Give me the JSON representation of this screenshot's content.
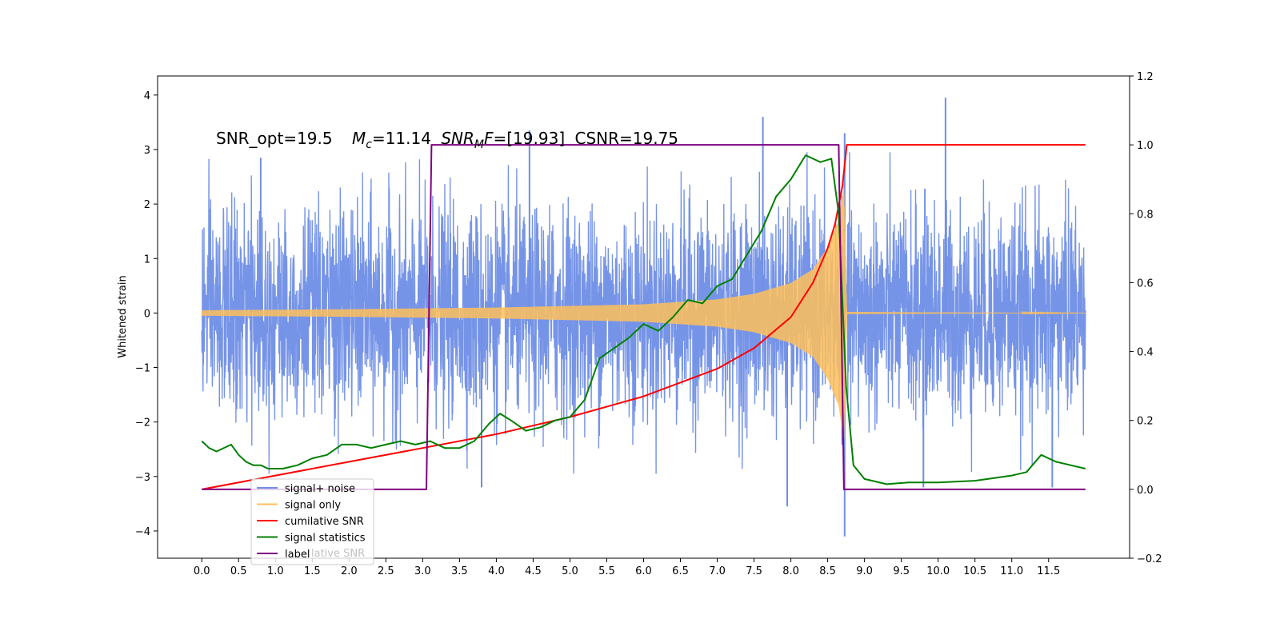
{
  "chart_data": {
    "type": "line",
    "title": "",
    "annotation": {
      "snr_opt": "SNR_opt=19.5",
      "mc_symbol": "M",
      "mc_sub": "c",
      "mc_value": "=11.14",
      "snrmf_symbol": "SNR",
      "snrmf_sub": "M",
      "snrmf_f": "F",
      "snrmf_value": "=[19.93]",
      "csnr": "CSNR=19.75"
    },
    "xlabel": "",
    "ylabel": "Whitened strain",
    "y2label": "",
    "xlim": [
      -0.6,
      12.6
    ],
    "ylim": [
      -4.5,
      4.35
    ],
    "y2lim": [
      -0.2,
      1.2
    ],
    "xticks": [
      0.0,
      0.5,
      1.0,
      1.5,
      2.0,
      2.5,
      3.0,
      3.5,
      4.0,
      4.5,
      5.0,
      5.5,
      6.0,
      6.5,
      7.0,
      7.5,
      8.0,
      8.5,
      9.0,
      9.5,
      10.0,
      10.5,
      11.0,
      11.5
    ],
    "xtick_labels": [
      "0.0",
      "0.5",
      "1.0",
      "1.5",
      "2.0",
      "2.5",
      "3.0",
      "3.5",
      "4.0",
      "4.5",
      "5.0",
      "5.5",
      "6.0",
      "6.5",
      "7.0",
      "7.5",
      "8.0",
      "8.5",
      "9.0",
      "9.5",
      "10.0",
      "10.5",
      "11.0",
      "11.5"
    ],
    "yticks": [
      -4,
      -3,
      -2,
      -1,
      0,
      1,
      2,
      3,
      4
    ],
    "ytick_labels": [
      "−4",
      "−3",
      "−2",
      "−1",
      "0",
      "1",
      "2",
      "3",
      "4"
    ],
    "y2ticks": [
      -0.2,
      0.0,
      0.2,
      0.4,
      0.6,
      0.8,
      1.0,
      1.2
    ],
    "y2tick_labels": [
      "−0.2",
      "0.0",
      "0.2",
      "0.4",
      "0.6",
      "0.8",
      "1.0",
      "1.2"
    ],
    "grid": false,
    "legend_position": "lower-left",
    "legend": [
      {
        "label": "signal+ noise",
        "color": "#6f8ee6"
      },
      {
        "label": "signal only",
        "color": "#ffbf5a"
      },
      {
        "label": "cumilative SNR",
        "color": "#ff0000"
      },
      {
        "label": "signal statistics",
        "color": "#008000"
      },
      {
        "label": "label",
        "color": "#800080"
      }
    ],
    "legend_ghost_text": "lative SNR",
    "series": [
      {
        "name": "signal+ noise",
        "axis": "left",
        "color": "#6f8ee6",
        "x_range": [
          0.0,
          12.0
        ],
        "std": 1.0,
        "outlier_spikes": [
          {
            "x": 7.62,
            "y": 3.6
          },
          {
            "x": 8.73,
            "y": 3.3
          },
          {
            "x": 10.1,
            "y": 3.95
          },
          {
            "x": 8.73,
            "y": -4.1
          },
          {
            "x": 7.95,
            "y": -3.55
          },
          {
            "x": 9.8,
            "y": -3.2
          },
          {
            "x": 3.8,
            "y": -3.2
          },
          {
            "x": 11.55,
            "y": -3.2
          },
          {
            "x": 0.8,
            "y": 2.85
          },
          {
            "x": 4.45,
            "y": 3.35
          }
        ]
      },
      {
        "name": "signal only",
        "axis": "left",
        "color": "#ffbf5a",
        "envelope_x": [
          0.0,
          2.0,
          4.0,
          6.0,
          7.0,
          7.5,
          8.0,
          8.3,
          8.5,
          8.65,
          8.72,
          8.76,
          12.0
        ],
        "envelope_y": [
          0.05,
          0.07,
          0.1,
          0.16,
          0.25,
          0.35,
          0.55,
          0.8,
          1.2,
          1.7,
          2.3,
          0.02,
          0.0
        ]
      },
      {
        "name": "cumilative SNR",
        "axis": "right",
        "color": "#ff0000",
        "x": [
          0.0,
          1.0,
          2.0,
          3.0,
          4.0,
          5.0,
          6.0,
          7.0,
          7.5,
          8.0,
          8.3,
          8.5,
          8.6,
          8.7,
          8.76,
          9.0,
          10.0,
          11.0,
          12.0
        ],
        "y": [
          0.0,
          0.04,
          0.08,
          0.12,
          0.16,
          0.21,
          0.27,
          0.35,
          0.41,
          0.5,
          0.6,
          0.7,
          0.77,
          0.88,
          1.0,
          1.0,
          1.0,
          1.0,
          1.0
        ]
      },
      {
        "name": "signal statistics",
        "axis": "right",
        "color": "#008000",
        "x": [
          0.0,
          0.1,
          0.2,
          0.4,
          0.5,
          0.6,
          0.7,
          0.8,
          0.9,
          1.0,
          1.1,
          1.3,
          1.5,
          1.7,
          1.9,
          2.1,
          2.3,
          2.5,
          2.7,
          2.9,
          3.1,
          3.3,
          3.5,
          3.7,
          3.9,
          4.05,
          4.2,
          4.4,
          4.6,
          4.8,
          5.0,
          5.2,
          5.4,
          5.6,
          5.8,
          6.0,
          6.2,
          6.4,
          6.6,
          6.8,
          7.0,
          7.2,
          7.4,
          7.6,
          7.8,
          8.0,
          8.2,
          8.4,
          8.55,
          8.65,
          8.75,
          8.85,
          9.0,
          9.3,
          9.6,
          10.0,
          10.5,
          11.0,
          11.2,
          11.4,
          11.6,
          11.8,
          12.0
        ],
        "y": [
          0.14,
          0.12,
          0.11,
          0.13,
          0.1,
          0.08,
          0.07,
          0.07,
          0.06,
          0.06,
          0.06,
          0.07,
          0.09,
          0.1,
          0.13,
          0.13,
          0.12,
          0.13,
          0.14,
          0.13,
          0.14,
          0.12,
          0.12,
          0.14,
          0.19,
          0.22,
          0.2,
          0.17,
          0.18,
          0.2,
          0.21,
          0.26,
          0.38,
          0.41,
          0.44,
          0.48,
          0.46,
          0.5,
          0.55,
          0.54,
          0.59,
          0.61,
          0.68,
          0.75,
          0.85,
          0.9,
          0.97,
          0.95,
          0.96,
          0.8,
          0.3,
          0.07,
          0.03,
          0.015,
          0.02,
          0.02,
          0.025,
          0.04,
          0.05,
          0.1,
          0.08,
          0.07,
          0.06
        ]
      },
      {
        "name": "label",
        "axis": "right",
        "color": "#800080",
        "x": [
          0.0,
          3.05,
          3.12,
          8.65,
          8.72,
          12.0
        ],
        "y": [
          0.0,
          0.0,
          1.0,
          1.0,
          0.0,
          0.0
        ]
      }
    ]
  }
}
